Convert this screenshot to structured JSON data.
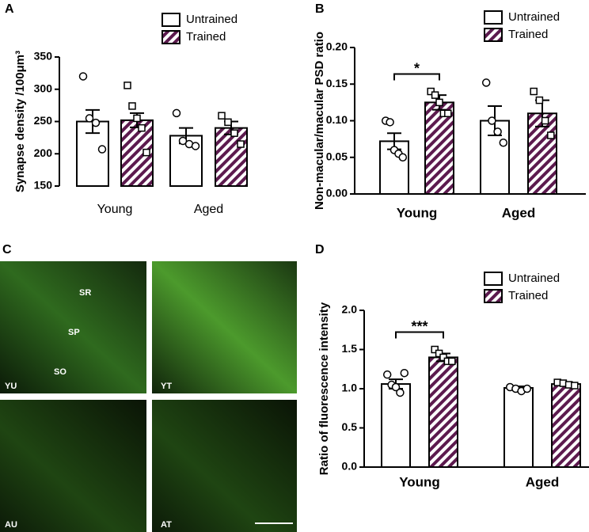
{
  "panel_labels": [
    "A",
    "B",
    "C",
    "D"
  ],
  "micrographs": {
    "panels": [
      "YU",
      "YT",
      "AU",
      "AT"
    ],
    "regions": [
      "SR",
      "SP",
      "SO"
    ]
  },
  "chart_data": [
    {
      "type": "bar",
      "y_label": "Synapse density /100μm³",
      "categories": [
        "Young",
        "Aged"
      ],
      "ylim": [
        150,
        350
      ],
      "yticks": [
        150,
        200,
        250,
        300,
        350
      ],
      "series": [
        {
          "name": "Untrained",
          "color": "#000000",
          "values": [
            250,
            228
          ],
          "errors": [
            18,
            12
          ],
          "points": [
            [
              320,
              255,
              248,
              207
            ],
            [
              263,
              220,
              215,
              212
            ]
          ]
        },
        {
          "name": "Trained",
          "color": "#5c1a4e",
          "values": [
            252,
            240
          ],
          "errors": [
            11,
            10
          ],
          "points": [
            [
              306,
              274,
              255,
              240,
              202
            ],
            [
              259,
              249,
              232,
              215
            ]
          ]
        }
      ]
    },
    {
      "type": "bar",
      "y_label": "Non-macular/macular PSD ratio",
      "categories": [
        "Young",
        "Aged"
      ],
      "ylim": [
        0,
        0.2
      ],
      "yticks": [
        {
          "value": 0,
          "label": "0.00"
        },
        {
          "value": 0.05,
          "label": "0.05"
        },
        {
          "value": 0.1,
          "label": "0.10"
        },
        {
          "value": 0.15,
          "label": "0.15"
        },
        {
          "value": 0.2,
          "label": "0.20"
        }
      ],
      "annotations": [
        {
          "text": "*"
        }
      ],
      "series": [
        {
          "name": "Untrained",
          "color": "#000000",
          "values": [
            0.072,
            0.1
          ],
          "errors": [
            0.011,
            0.02
          ],
          "points": [
            [
              0.1,
              0.098,
              0.06,
              0.055,
              0.05
            ],
            [
              0.152,
              0.1,
              0.085,
              0.07
            ]
          ]
        },
        {
          "name": "Trained",
          "color": "#5c1a4e",
          "values": [
            0.125,
            0.11
          ],
          "errors": [
            0.01,
            0.018
          ],
          "points": [
            [
              0.14,
              0.135,
              0.125,
              0.11,
              0.11
            ],
            [
              0.14,
              0.128,
              0.1,
              0.08
            ]
          ]
        }
      ]
    },
    {
      "type": "bar",
      "y_label": "Ratio of fluorescence intensity",
      "categories": [
        "Young",
        "Aged"
      ],
      "ylim": [
        0,
        2
      ],
      "yticks": [
        {
          "value": 0,
          "label": "0.0"
        },
        {
          "value": 0.5,
          "label": "0.5"
        },
        {
          "value": 1,
          "label": "1.0"
        },
        {
          "value": 1.5,
          "label": "1.5"
        },
        {
          "value": 2,
          "label": "2.0"
        }
      ],
      "annotations": [
        {
          "text": "***"
        }
      ],
      "series": [
        {
          "name": "Untrained",
          "color": "#000000",
          "values": [
            1.06,
            1.01
          ],
          "errors": [
            0.06,
            0.02
          ],
          "points": [
            [
              1.18,
              1.05,
              1.02,
              0.95,
              1.2
            ],
            [
              1.02,
              1.0,
              0.97,
              1.0
            ]
          ]
        },
        {
          "name": "Trained",
          "color": "#5c1a4e",
          "values": [
            1.4,
            1.06
          ],
          "errors": [
            0.05,
            0.02
          ],
          "points": [
            [
              1.5,
              1.45,
              1.4,
              1.35,
              1.35
            ],
            [
              1.08,
              1.07,
              1.05,
              1.04
            ]
          ]
        }
      ]
    }
  ]
}
